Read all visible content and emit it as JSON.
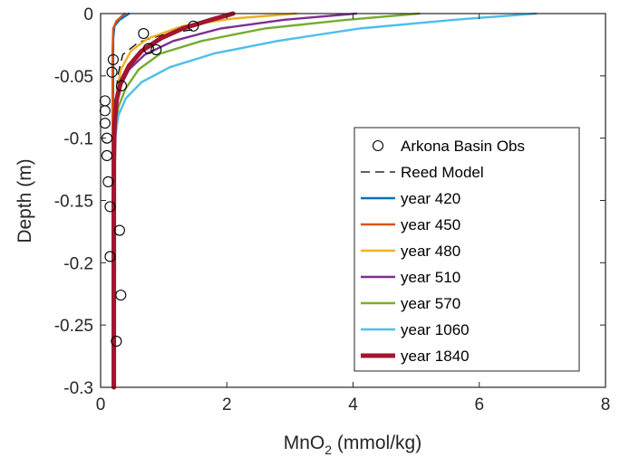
{
  "chart_data": {
    "type": "line",
    "xlabel_main": "MnO",
    "xlabel_sub": "2",
    "xlabel_unit": " (mmol/kg)",
    "ylabel": "Depth (m)",
    "xlim": [
      0,
      8
    ],
    "ylim": [
      -0.3,
      0
    ],
    "xticks": [
      0,
      2,
      4,
      6,
      8
    ],
    "xtick_labels": [
      "0",
      "2",
      "4",
      "6",
      "8"
    ],
    "yticks": [
      0,
      -0.05,
      -0.1,
      -0.15,
      -0.2,
      -0.25,
      -0.3
    ],
    "ytick_labels": [
      "0",
      "-0.05",
      "-0.1",
      "-0.15",
      "-0.2",
      "-0.25",
      "-0.3"
    ],
    "grid": false,
    "legend_position": "bottom-right",
    "observations": {
      "name": "Arkona Basin Obs",
      "points": [
        [
          0.68,
          -0.016
        ],
        [
          1.47,
          -0.01
        ],
        [
          0.76,
          -0.028
        ],
        [
          0.88,
          -0.029
        ],
        [
          0.2,
          -0.037
        ],
        [
          0.18,
          -0.047
        ],
        [
          0.33,
          -0.058
        ],
        [
          0.07,
          -0.07
        ],
        [
          0.07,
          -0.078
        ],
        [
          0.07,
          -0.088
        ],
        [
          0.1,
          -0.1
        ],
        [
          0.1,
          -0.114
        ],
        [
          0.12,
          -0.135
        ],
        [
          0.15,
          -0.155
        ],
        [
          0.3,
          -0.174
        ],
        [
          0.15,
          -0.195
        ],
        [
          0.32,
          -0.226
        ],
        [
          0.25,
          -0.263
        ]
      ]
    },
    "series": [
      {
        "name": "Reed Model",
        "color": "#000000",
        "dash": "10,6",
        "width": 1.3,
        "points": [
          [
            1.45,
            -0.013
          ],
          [
            1.05,
            -0.016
          ],
          [
            0.6,
            -0.023
          ],
          [
            0.35,
            -0.033
          ],
          [
            0.27,
            -0.05
          ],
          [
            0.24,
            -0.07
          ]
        ]
      },
      {
        "name": "year 420",
        "color": "#0072BD",
        "width": 2.4,
        "points": [
          [
            0.45,
            0
          ],
          [
            0.3,
            -0.005
          ],
          [
            0.22,
            -0.01
          ],
          [
            0.2,
            -0.02
          ],
          [
            0.2,
            -0.05
          ],
          [
            0.2,
            -0.1
          ],
          [
            0.2,
            -0.3
          ]
        ]
      },
      {
        "name": "year 450",
        "color": "#D95319",
        "width": 2.4,
        "points": [
          [
            0.38,
            0
          ],
          [
            0.25,
            -0.006
          ],
          [
            0.2,
            -0.012
          ],
          [
            0.19,
            -0.03
          ],
          [
            0.19,
            -0.1
          ],
          [
            0.19,
            -0.3
          ]
        ]
      },
      {
        "name": "year 480",
        "color": "#EDB120",
        "width": 2.4,
        "points": [
          [
            3.1,
            0
          ],
          [
            2.1,
            -0.004
          ],
          [
            1.3,
            -0.01
          ],
          [
            0.75,
            -0.02
          ],
          [
            0.48,
            -0.03
          ],
          [
            0.32,
            -0.045
          ],
          [
            0.25,
            -0.065
          ],
          [
            0.22,
            -0.09
          ],
          [
            0.21,
            -0.15
          ],
          [
            0.21,
            -0.3
          ]
        ]
      },
      {
        "name": "year 510",
        "color": "#7E2F8E",
        "width": 2.4,
        "points": [
          [
            4.05,
            0
          ],
          [
            2.9,
            -0.005
          ],
          [
            1.9,
            -0.012
          ],
          [
            1.15,
            -0.022
          ],
          [
            0.7,
            -0.033
          ],
          [
            0.45,
            -0.045
          ],
          [
            0.3,
            -0.06
          ],
          [
            0.24,
            -0.08
          ],
          [
            0.21,
            -0.12
          ],
          [
            0.21,
            -0.3
          ]
        ]
      },
      {
        "name": "year 570",
        "color": "#77AC30",
        "width": 2.4,
        "points": [
          [
            5.05,
            0
          ],
          [
            3.9,
            -0.005
          ],
          [
            2.6,
            -0.012
          ],
          [
            1.6,
            -0.022
          ],
          [
            0.95,
            -0.032
          ],
          [
            0.6,
            -0.045
          ],
          [
            0.4,
            -0.06
          ],
          [
            0.28,
            -0.075
          ],
          [
            0.22,
            -0.1
          ],
          [
            0.21,
            -0.3
          ]
        ]
      },
      {
        "name": "year 1060",
        "color": "#4DBEEE",
        "width": 2.4,
        "points": [
          [
            6.9,
            0
          ],
          [
            5.6,
            -0.005
          ],
          [
            4.1,
            -0.012
          ],
          [
            2.8,
            -0.022
          ],
          [
            1.8,
            -0.032
          ],
          [
            1.1,
            -0.043
          ],
          [
            0.65,
            -0.055
          ],
          [
            0.4,
            -0.068
          ],
          [
            0.28,
            -0.082
          ],
          [
            0.23,
            -0.1
          ],
          [
            0.22,
            -0.3
          ]
        ]
      },
      {
        "name": "year 1840",
        "color": "#A2142F",
        "width": 5,
        "points": [
          [
            2.1,
            0
          ],
          [
            1.75,
            -0.005
          ],
          [
            1.3,
            -0.012
          ],
          [
            0.95,
            -0.02
          ],
          [
            0.65,
            -0.03
          ],
          [
            0.45,
            -0.042
          ],
          [
            0.32,
            -0.055
          ],
          [
            0.25,
            -0.07
          ],
          [
            0.22,
            -0.09
          ],
          [
            0.21,
            -0.12
          ],
          [
            0.21,
            -0.3
          ]
        ]
      }
    ]
  }
}
